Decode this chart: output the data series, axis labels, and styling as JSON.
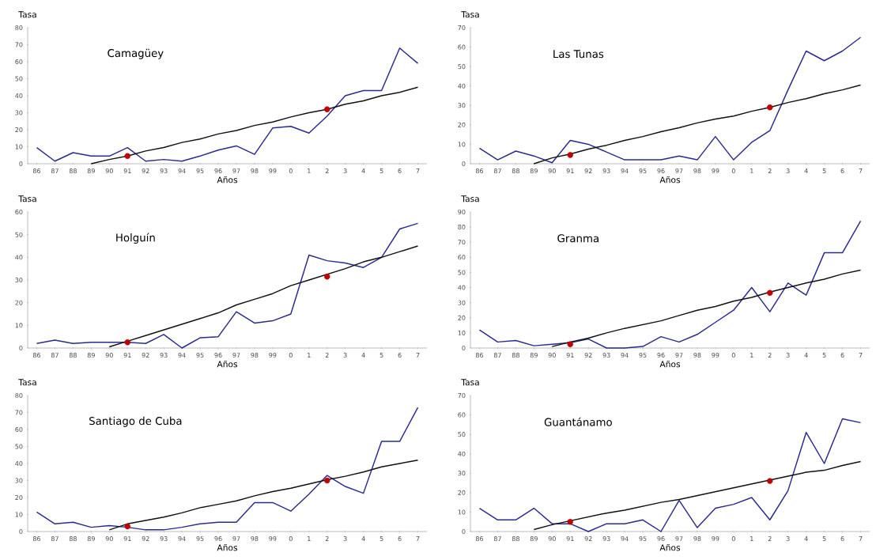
{
  "chart_data": [
    {
      "type": "line",
      "title": "Camagüey",
      "xlabel": "Años",
      "ylabel": "Tasa",
      "categories": [
        "86",
        "87",
        "88",
        "89",
        "90",
        "91",
        "92",
        "93",
        "94",
        "95",
        "96",
        "97",
        "98",
        "99",
        "0",
        "1",
        "2",
        "3",
        "4",
        "5",
        "6",
        "7"
      ],
      "ylim": [
        0,
        80
      ],
      "yticks": [
        0,
        10,
        20,
        30,
        40,
        50,
        60,
        70,
        80
      ],
      "series": [
        {
          "color": "#2b2b8f",
          "values": [
            9.5,
            1.5,
            6.5,
            4.5,
            4.5,
            9.5,
            1.5,
            2.5,
            1.5,
            4.5,
            8,
            10.5,
            5.5,
            21,
            22,
            18,
            28,
            40,
            43,
            43,
            68,
            59
          ]
        },
        {
          "color": "#111111",
          "values": [
            null,
            null,
            null,
            0,
            2.5,
            4.5,
            7.5,
            9.5,
            12.5,
            14.5,
            17.5,
            19.5,
            22.5,
            24.5,
            27.5,
            30,
            32,
            35,
            37,
            40,
            42,
            45
          ]
        },
        {
          "type": "scatter",
          "marker": "circle",
          "color": "#c00000",
          "x": [
            "91",
            "2"
          ],
          "values": [
            4.5,
            32
          ]
        }
      ]
    },
    {
      "type": "line",
      "title": "Las Tunas",
      "xlabel": "Años",
      "ylabel": "Tasa",
      "categories": [
        "86",
        "87",
        "88",
        "89",
        "90",
        "91",
        "92",
        "93",
        "94",
        "95",
        "96",
        "97",
        "98",
        "99",
        "0",
        "1",
        "2",
        "3",
        "4",
        "5",
        "6",
        "7"
      ],
      "ylim": [
        0,
        70
      ],
      "yticks": [
        0,
        10,
        20,
        30,
        40,
        50,
        60,
        70
      ],
      "series": [
        {
          "color": "#2b2b8f",
          "values": [
            8,
            2,
            6.5,
            4,
            0.5,
            12,
            10,
            6,
            2,
            2,
            2,
            4,
            2,
            14,
            2,
            11,
            17,
            38,
            58,
            53,
            58,
            65
          ]
        },
        {
          "color": "#111111",
          "values": [
            null,
            null,
            null,
            0,
            3,
            5,
            7.5,
            9.5,
            12,
            14,
            16.5,
            18.5,
            21,
            23,
            24.5,
            27,
            29,
            31.5,
            33.5,
            36,
            38,
            40.5
          ]
        },
        {
          "type": "scatter",
          "marker": "circle",
          "color": "#c00000",
          "x": [
            "91",
            "2"
          ],
          "values": [
            4.5,
            29
          ]
        }
      ]
    },
    {
      "type": "line",
      "title": "Holguín",
      "xlabel": "Años",
      "ylabel": "Tasa",
      "categories": [
        "86",
        "87",
        "88",
        "89",
        "90",
        "91",
        "92",
        "93",
        "94",
        "95",
        "96",
        "97",
        "98",
        "99",
        "0",
        "1",
        "2",
        "3",
        "4",
        "5",
        "6",
        "7"
      ],
      "ylim": [
        0,
        60
      ],
      "yticks": [
        0,
        10,
        20,
        30,
        40,
        50,
        60
      ],
      "series": [
        {
          "color": "#2b2b8f",
          "values": [
            2,
            3.5,
            2,
            2.5,
            2.5,
            2.5,
            2,
            6,
            0,
            4.5,
            5,
            16,
            11,
            12,
            15,
            41,
            38.5,
            37.5,
            35.5,
            40,
            52.5,
            55
          ]
        },
        {
          "color": "#111111",
          "values": [
            null,
            null,
            null,
            null,
            0.5,
            3,
            5.5,
            8,
            10.5,
            13,
            15.5,
            19,
            21.5,
            24,
            27.5,
            30,
            32.5,
            35,
            38,
            40,
            42.5,
            45
          ]
        },
        {
          "type": "scatter",
          "marker": "circle",
          "color": "#c00000",
          "x": [
            "91",
            "2"
          ],
          "values": [
            2.5,
            31.5
          ]
        }
      ]
    },
    {
      "type": "line",
      "title": "Granma",
      "xlabel": "Años",
      "ylabel": "Tasa",
      "categories": [
        "86",
        "87",
        "88",
        "89",
        "90",
        "91",
        "92",
        "93",
        "94",
        "95",
        "96",
        "97",
        "98",
        "99",
        "0",
        "1",
        "2",
        "3",
        "4",
        "5",
        "6",
        "7"
      ],
      "ylim": [
        0,
        90
      ],
      "yticks": [
        0,
        10,
        20,
        30,
        40,
        50,
        60,
        70,
        80,
        90
      ],
      "series": [
        {
          "color": "#2b2b8f",
          "values": [
            12,
            4,
            5,
            1.5,
            2.5,
            3.5,
            6,
            0,
            0,
            1,
            7.5,
            4,
            9,
            17,
            25,
            40,
            24,
            43,
            35,
            63,
            63,
            84
          ]
        },
        {
          "color": "#111111",
          "values": [
            null,
            null,
            null,
            null,
            1,
            4,
            6.5,
            10,
            13,
            15.5,
            18,
            21.5,
            25,
            27.5,
            31,
            33.5,
            37,
            40,
            43,
            45.5,
            49,
            51.5
          ]
        },
        {
          "type": "scatter",
          "marker": "circle",
          "color": "#c00000",
          "x": [
            "91",
            "2"
          ],
          "values": [
            2.5,
            36.5
          ]
        }
      ]
    },
    {
      "type": "line",
      "title": "Santiago de Cuba",
      "xlabel": "Años",
      "ylabel": "Tasa",
      "categories": [
        "86",
        "87",
        "88",
        "89",
        "90",
        "91",
        "92",
        "93",
        "94",
        "95",
        "96",
        "97",
        "98",
        "99",
        "0",
        "1",
        "2",
        "3",
        "4",
        "5",
        "6",
        "7"
      ],
      "ylim": [
        0,
        80
      ],
      "yticks": [
        0,
        10,
        20,
        30,
        40,
        50,
        60,
        70,
        80
      ],
      "series": [
        {
          "color": "#2b2b8f",
          "values": [
            11.5,
            4.5,
            5.5,
            2.5,
            3.5,
            2.5,
            1,
            1,
            2.5,
            4.5,
            5.5,
            5.5,
            17,
            17,
            12,
            22,
            33,
            26.5,
            22.5,
            53,
            53,
            73
          ]
        },
        {
          "color": "#111111",
          "values": [
            null,
            null,
            null,
            null,
            1,
            4.5,
            6.5,
            8.5,
            11,
            14,
            16,
            18,
            21,
            23.5,
            25.5,
            28,
            30.5,
            32.5,
            35,
            38,
            40,
            42
          ]
        },
        {
          "type": "scatter",
          "marker": "circle",
          "color": "#c00000",
          "x": [
            "91",
            "2"
          ],
          "values": [
            3,
            30
          ]
        }
      ]
    },
    {
      "type": "line",
      "title": "Guantánamo",
      "xlabel": "Años",
      "ylabel": "Tasa",
      "categories": [
        "86",
        "87",
        "88",
        "89",
        "90",
        "91",
        "92",
        "93",
        "94",
        "95",
        "96",
        "97",
        "98",
        "99",
        "0",
        "1",
        "2",
        "3",
        "4",
        "5",
        "6",
        "7"
      ],
      "ylim": [
        0,
        70
      ],
      "yticks": [
        0,
        10,
        20,
        30,
        40,
        50,
        60,
        70
      ],
      "series": [
        {
          "color": "#2b2b8f",
          "values": [
            12,
            6,
            6,
            12,
            4,
            4,
            0,
            4,
            4,
            6,
            0,
            16,
            2,
            12,
            14,
            17.5,
            6,
            21,
            51,
            35,
            58,
            56
          ]
        },
        {
          "color": "#111111",
          "values": [
            null,
            null,
            null,
            1,
            3.5,
            5.5,
            7.5,
            9.5,
            11,
            13,
            15,
            16.5,
            18.5,
            20.5,
            22.5,
            24.5,
            26.5,
            28.5,
            30.5,
            31.5,
            34,
            36
          ]
        },
        {
          "type": "scatter",
          "marker": "circle",
          "color": "#c00000",
          "x": [
            "91",
            "2"
          ],
          "values": [
            5,
            26
          ]
        }
      ]
    }
  ]
}
